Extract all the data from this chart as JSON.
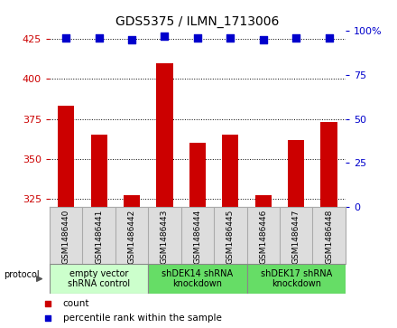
{
  "title": "GDS5375 / ILMN_1713006",
  "samples": [
    "GSM1486440",
    "GSM1486441",
    "GSM1486442",
    "GSM1486443",
    "GSM1486444",
    "GSM1486445",
    "GSM1486446",
    "GSM1486447",
    "GSM1486448"
  ],
  "counts": [
    383,
    365,
    327,
    410,
    360,
    365,
    327,
    362,
    373
  ],
  "percentiles": [
    96,
    96,
    95,
    97,
    96,
    96,
    95,
    96,
    96
  ],
  "ylim_left": [
    320,
    430
  ],
  "ylim_right": [
    0,
    100
  ],
  "yticks_left": [
    325,
    350,
    375,
    400,
    425
  ],
  "yticks_right": [
    0,
    25,
    50,
    75,
    100
  ],
  "bar_color": "#cc0000",
  "dot_color": "#0000cc",
  "groups": [
    {
      "label": "empty vector\nshRNA control",
      "start": 0,
      "end": 3,
      "color": "#ccffcc"
    },
    {
      "label": "shDEK14 shRNA\nknockdown",
      "start": 3,
      "end": 6,
      "color": "#66dd66"
    },
    {
      "label": "shDEK17 shRNA\nknockdown",
      "start": 6,
      "end": 9,
      "color": "#66dd66"
    }
  ],
  "protocol_label": "protocol",
  "legend_count": "count",
  "legend_percentile": "percentile rank within the sample",
  "bar_width": 0.5,
  "dot_size": 40,
  "title_fontsize": 10,
  "tick_fontsize": 8,
  "label_fontsize": 6.5,
  "group_fontsize": 7,
  "legend_fontsize": 7.5
}
